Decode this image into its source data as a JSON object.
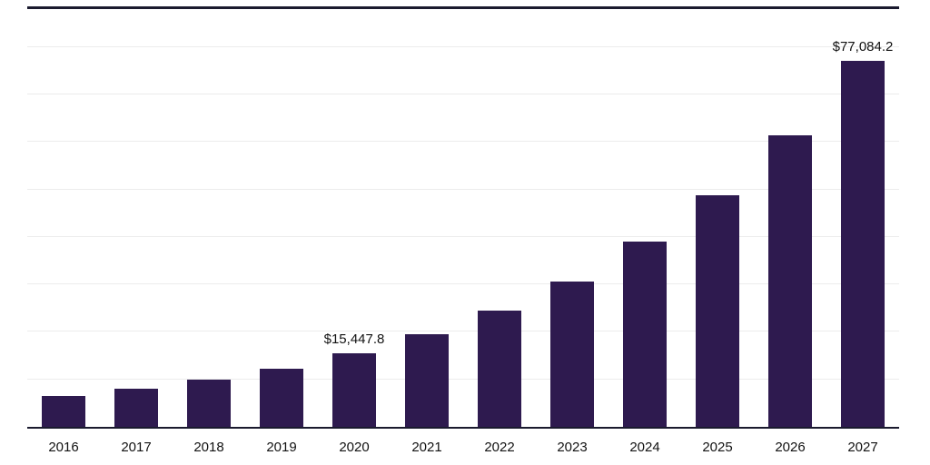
{
  "chart_data": {
    "type": "bar",
    "title": "",
    "xlabel": "",
    "ylabel": "",
    "categories": [
      "2016",
      "2017",
      "2018",
      "2019",
      "2020",
      "2021",
      "2022",
      "2023",
      "2024",
      "2025",
      "2026",
      "2027"
    ],
    "values": [
      6500,
      8100,
      9900,
      12300,
      15447.8,
      19500,
      24400,
      30700,
      39000,
      48800,
      61500,
      77084.2
    ],
    "data_labels": {
      "2020": "$15,447.8",
      "2027": "$77,084.2"
    },
    "ylim": [
      0,
      88000
    ],
    "gridline_interval": 10000,
    "grid": true,
    "legend": "none",
    "colors": {
      "bar": "#2e1a4f",
      "gridline": "#ececec",
      "axis": "#1a1a2e",
      "label_text": "#111111",
      "background": "#ffffff"
    }
  }
}
